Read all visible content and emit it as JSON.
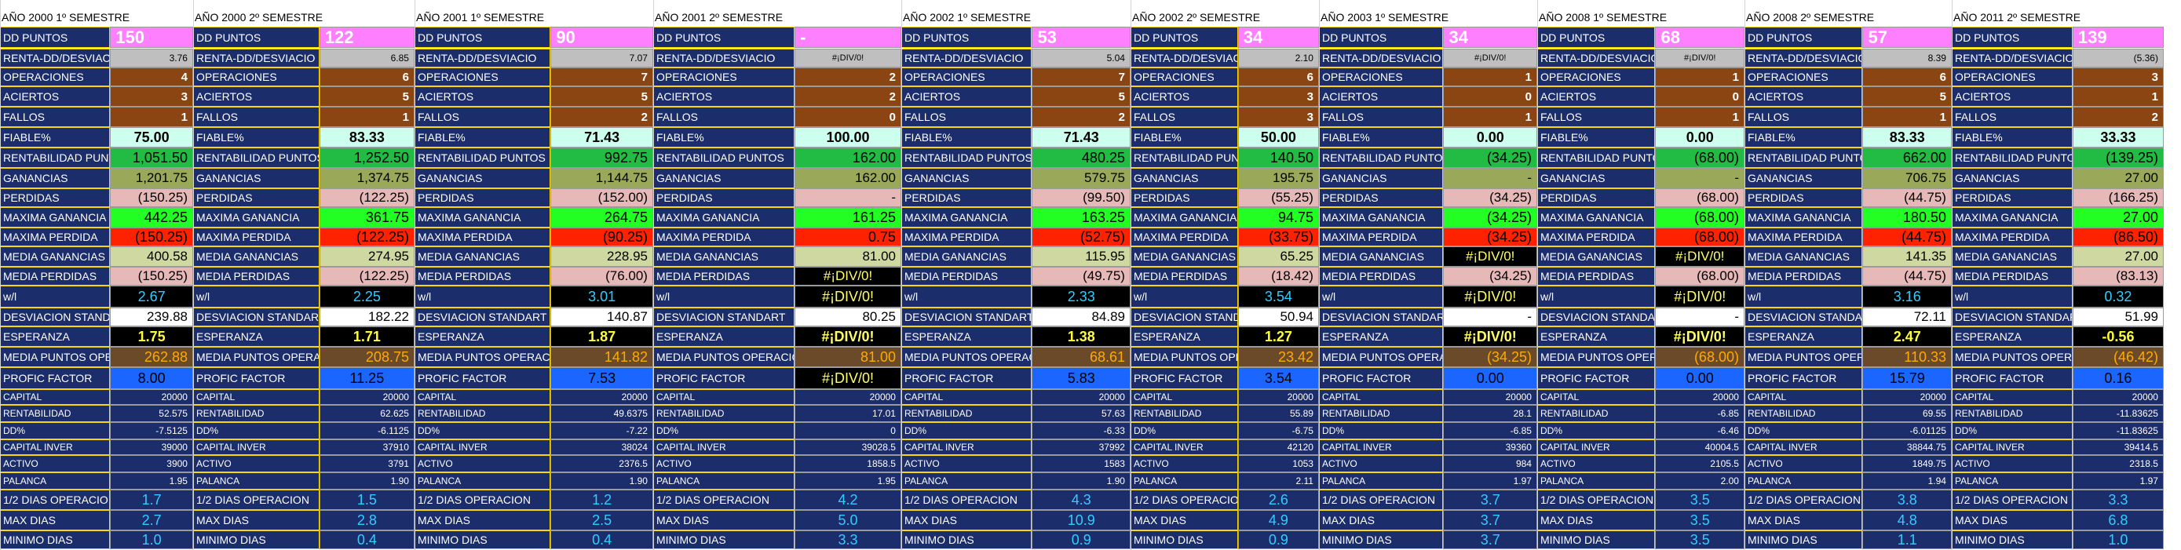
{
  "row_labels": [
    "DD PUNTOS",
    "RENTA-DD/DESVIACIO",
    "OPERACIONES",
    "ACIERTOS",
    "FALLOS",
    "FIABLE%",
    "RENTABILIDAD PUNTOS",
    "GANANCIAS",
    "PERDIDAS",
    "MAXIMA GANANCIA",
    "MAXIMA PERDIDA",
    "MEDIA GANANCIAS",
    "MEDIA PERDIDAS",
    "w/l",
    "DESVIACION STANDART",
    "ESPERANZA",
    "MEDIA PUNTOS OPERACION",
    "PROFIC FACTOR",
    "CAPITAL",
    "RENTABILIDAD",
    "DD%",
    "CAPITAL INVER",
    "ACTIVO",
    "PALANCA",
    "1/2 DIAS OPERACION",
    "MAX DIAS",
    "MINIMO DIAS"
  ],
  "colors": {
    "label_bg": "#1b2d6b",
    "label_border": "#ffd700",
    "pink": "#ff80ff",
    "brown": "#8b4513",
    "mint": "#ccffee",
    "green": "#22bb44",
    "olive": "#9aa85a",
    "salmon": "#e6b8b7",
    "lime": "#22ff22",
    "red": "#ff2200",
    "khaki": "#cfd8a0",
    "black": "#000000",
    "navy": "#1b2d6b",
    "cyan_text": "#33ccff",
    "blue": "#1a66ff",
    "yellow_text": "#ffff33",
    "orange_text": "#ffaa00"
  },
  "blocks": [
    {
      "header": "AÑO 2000 1º SEMESTRE",
      "values": [
        "150",
        "3.76",
        "4",
        "3",
        "1",
        "75.00",
        "1,051.50",
        "1,201.75",
        "(150.25)",
        "442.25",
        "(150.25)",
        "400.58",
        "(150.25)",
        "2.67",
        "239.88",
        "1.75",
        "262.88",
        "8.00",
        "20000",
        "52.575",
        "-7.5125",
        "39000",
        "3900",
        "1.95",
        "1.7",
        "2.7",
        "1.0"
      ]
    },
    {
      "header": "AÑO 2000 2º SEMESTRE",
      "values": [
        "122",
        "6.85",
        "6",
        "5",
        "1",
        "83.33",
        "1,252.50",
        "1,374.75",
        "(122.25)",
        "361.75",
        "(122.25)",
        "274.95",
        "(122.25)",
        "2.25",
        "182.22",
        "1.71",
        "208.75",
        "11.25",
        "20000",
        "62.625",
        "-6.1125",
        "37910",
        "3791",
        "1.90",
        "1.5",
        "2.8",
        "0.4"
      ]
    },
    {
      "header": "AÑO 2001 1º SEMESTRE",
      "values": [
        "90",
        "7.07",
        "7",
        "5",
        "2",
        "71.43",
        "992.75",
        "1,144.75",
        "(152.00)",
        "264.75",
        "(90.25)",
        "228.95",
        "(76.00)",
        "3.01",
        "140.87",
        "1.87",
        "141.82",
        "7.53",
        "20000",
        "49.6375",
        "-7.22",
        "38024",
        "2376.5",
        "1.90",
        "1.2",
        "2.5",
        "0.4"
      ]
    },
    {
      "header": "AÑO 2001 2º SEMESTRE",
      "values": [
        "-",
        "#¡DIV/0!",
        "2",
        "2",
        "0",
        "100.00",
        "162.00",
        "162.00",
        "-",
        "161.25",
        "0.75",
        "81.00",
        "#¡DIV/0!",
        "#¡DIV/0!",
        "80.25",
        "#¡DIV/0!",
        "81.00",
        "#¡DIV/0!",
        "20000",
        "17.01",
        "0",
        "39028.5",
        "1858.5",
        "1.95",
        "4.2",
        "5.0",
        "3.3"
      ]
    },
    {
      "header": "AÑO 2002 1º SEMESTRE",
      "values": [
        "53",
        "5.04",
        "7",
        "5",
        "2",
        "71.43",
        "480.25",
        "579.75",
        "(99.50)",
        "163.25",
        "(52.75)",
        "115.95",
        "(49.75)",
        "2.33",
        "84.89",
        "1.38",
        "68.61",
        "5.83",
        "20000",
        "57.63",
        "-6.33",
        "37992",
        "1583",
        "1.90",
        "4.3",
        "10.9",
        "0.9"
      ]
    },
    {
      "header": "AÑO 2002 2º SEMESTRE",
      "values": [
        "34",
        "2.10",
        "6",
        "3",
        "3",
        "50.00",
        "140.50",
        "195.75",
        "(55.25)",
        "94.75",
        "(33.75)",
        "65.25",
        "(18.42)",
        "3.54",
        "50.94",
        "1.27",
        "23.42",
        "3.54",
        "20000",
        "55.89",
        "-6.75",
        "42120",
        "1053",
        "2.11",
        "2.6",
        "4.9",
        "0.9"
      ]
    },
    {
      "header": "AÑO 2003 1º SEMESTRE",
      "values": [
        "34",
        "#¡DIV/0!",
        "1",
        "0",
        "1",
        "0.00",
        "(34.25)",
        "-",
        "(34.25)",
        "(34.25)",
        "(34.25)",
        "#¡DIV/0!",
        "(34.25)",
        "#¡DIV/0!",
        "-",
        "#¡DIV/0!",
        "(34.25)",
        "0.00",
        "20000",
        "28.1",
        "-6.85",
        "39360",
        "984",
        "1.97",
        "3.7",
        "3.7",
        "3.7"
      ]
    },
    {
      "header": "AÑO 2008 1º SEMESTRE",
      "values": [
        "68",
        "#¡DIV/0!",
        "1",
        "0",
        "1",
        "0.00",
        "(68.00)",
        "-",
        "(68.00)",
        "(68.00)",
        "(68.00)",
        "#¡DIV/0!",
        "(68.00)",
        "#¡DIV/0!",
        "-",
        "#¡DIV/0!",
        "(68.00)",
        "0.00",
        "20000",
        "-6.85",
        "-6.46",
        "40004.5",
        "2105.5",
        "2.00",
        "3.5",
        "3.5",
        "3.5"
      ]
    },
    {
      "header": "AÑO 2008 2º SEMESTRE",
      "values": [
        "57",
        "8.39",
        "6",
        "5",
        "1",
        "83.33",
        "662.00",
        "706.75",
        "(44.75)",
        "180.50",
        "(44.75)",
        "141.35",
        "(44.75)",
        "3.16",
        "72.11",
        "2.47",
        "110.33",
        "15.79",
        "20000",
        "69.55",
        "-6.01125",
        "38844.75",
        "1849.75",
        "1.94",
        "3.8",
        "4.8",
        "1.1"
      ]
    },
    {
      "header": "AÑO 2011 2º SEMESTRE",
      "values": [
        "139",
        "(5.36)",
        "3",
        "1",
        "2",
        "33.33",
        "(139.25)",
        "27.00",
        "(166.25)",
        "27.00",
        "(86.50)",
        "27.00",
        "(83.13)",
        "0.32",
        "51.99",
        "-0.56",
        "(46.42)",
        "0.16",
        "20000",
        "-11.83625",
        "-11.83625",
        "39414.5",
        "2318.5",
        "1.97",
        "3.3",
        "6.8",
        "1.0"
      ]
    }
  ]
}
